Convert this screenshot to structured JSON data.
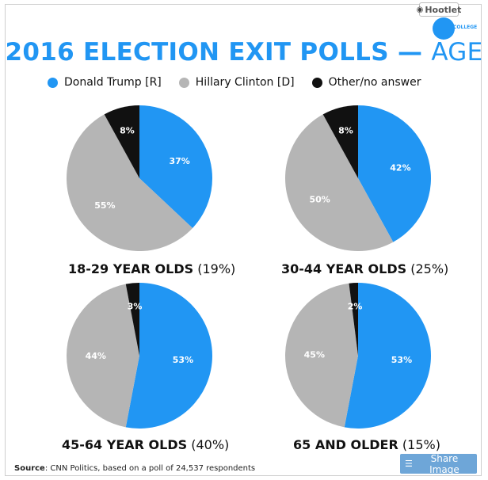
{
  "brand": {
    "name": "Hootlet",
    "sub_label": "COLLEGE"
  },
  "title": {
    "main": "2016 ELECTION EXIT POLLS",
    "dash": "—",
    "suffix": "AGE"
  },
  "legend": [
    {
      "label": "Donald Trump  [R]",
      "color": "#2196f3"
    },
    {
      "label": "Hillary Clinton [D]",
      "color": "#b5b5b5"
    },
    {
      "label": "Other/no answer",
      "color": "#111111"
    }
  ],
  "chart_data": {
    "type": "pie",
    "title": "2016 ELECTION EXIT POLLS — AGE",
    "series_names": [
      "Donald Trump [R]",
      "Hillary Clinton [D]",
      "Other/no answer"
    ],
    "colors": [
      "#2196f3",
      "#b5b5b5",
      "#111111"
    ],
    "pies": [
      {
        "group": "18-29 YEAR OLDS",
        "share": "(19%)",
        "values": [
          37,
          55,
          8
        ],
        "labels": [
          "37%",
          "55%",
          "8%"
        ]
      },
      {
        "group": "30-44 YEAR OLDS",
        "share": "(25%)",
        "values": [
          42,
          50,
          8
        ],
        "labels": [
          "42%",
          "50%",
          "8%"
        ]
      },
      {
        "group": "45-64 YEAR OLDS",
        "share": "(40%)",
        "values": [
          53,
          44,
          3
        ],
        "labels": [
          "53%",
          "44%",
          "3%"
        ]
      },
      {
        "group": "65 AND OLDER",
        "share": "(15%)",
        "values": [
          53,
          45,
          2
        ],
        "labels": [
          "53%",
          "45%",
          "2%"
        ]
      }
    ]
  },
  "footer": {
    "source_label": "Source",
    "source_text": ": CNN Politics, based on a poll of 24,537 respondents",
    "share_label": "Share Image"
  }
}
